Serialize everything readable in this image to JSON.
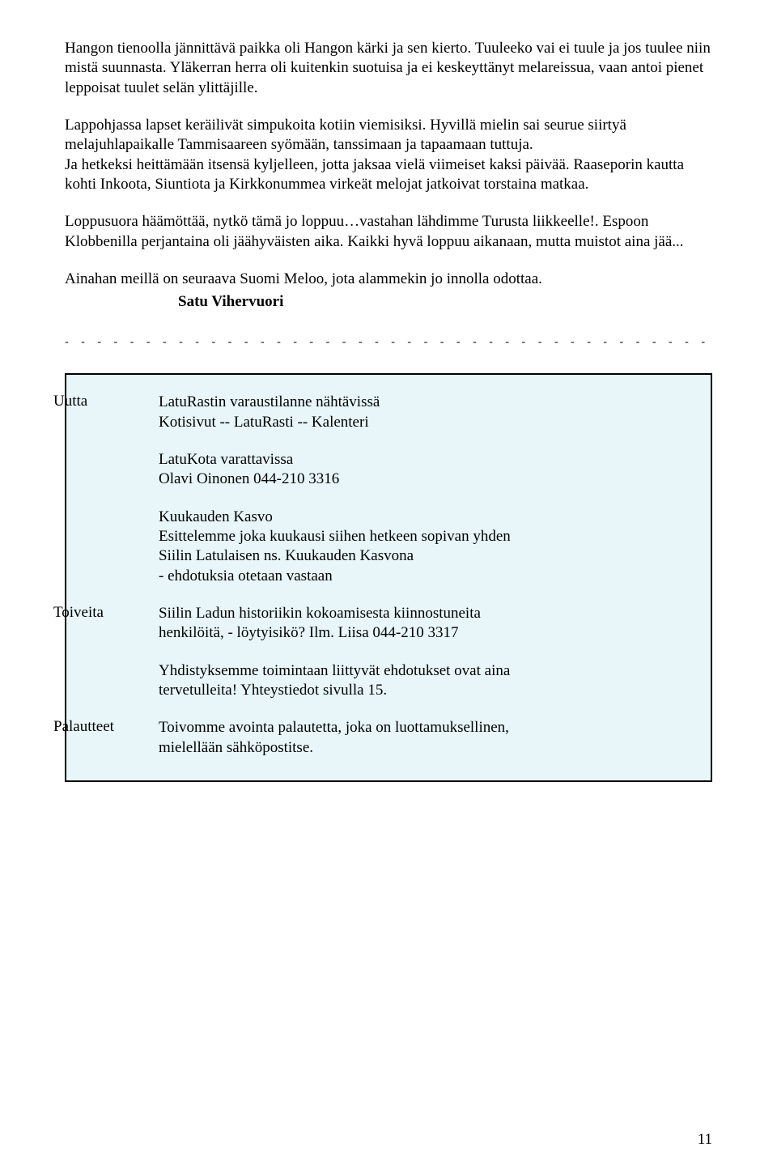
{
  "paragraphs": {
    "p1": "Hangon tienoolla jännittävä paikka oli Hangon kärki ja sen kierto. Tuuleeko vai ei tuule ja jos tuulee niin mistä suunnasta. Yläkerran herra oli kuitenkin suotuisa ja ei keskeyttänyt melareissua, vaan antoi pienet leppoisat tuulet selän ylittäjille.",
    "p2": "Lappohjassa lapset keräilivät simpukoita kotiin viemisiksi. Hyvillä mielin sai seurue siirtyä melajuhlapaikalle Tammisaareen syömään, tanssimaan ja tapaamaan tuttuja.",
    "p3": "Ja hetkeksi heittämään itsensä kyljelleen, jotta jaksaa vielä viimeiset kaksi päivää. Raaseporin kautta kohti Inkoota, Siuntiota ja Kirkkonummea virkeät melojat jatkoivat torstaina matkaa.",
    "p4": "Loppusuora häämöttää, nytkö tämä jo loppuu…vastahan lähdimme Turusta liikkeelle!. Espoon Klobbenilla perjantaina oli jäähyväisten aika. Kaikki hyvä loppuu aikanaan, mutta muistot aina jää...",
    "p5": "Ainahan meillä on seuraava Suomi Meloo, jota alammekin jo innolla odottaa."
  },
  "signature": "Satu Vihervuori",
  "infobox": {
    "uutta": {
      "label": "Uutta",
      "block1_line1": "LatuRastin varaustilanne nähtävissä",
      "block1_line2": "Kotisivut -- LatuRasti -- Kalenteri",
      "block2_line1": "LatuKota varattavissa",
      "block2_line2": "Olavi Oinonen 044-210 3316",
      "block3_line1": "Kuukauden Kasvo",
      "block3_line2": "Esittelemme joka kuukausi siihen hetkeen sopivan yhden",
      "block3_line3": "Siilin Latulaisen ns. Kuukauden Kasvona",
      "block3_line4": "-  ehdotuksia otetaan vastaan"
    },
    "toiveita": {
      "label": "Toiveita",
      "block1_line1": "Siilin Ladun historiikin kokoamisesta kiinnostuneita",
      "block1_line2": "henkilöitä, - löytyisikö? Ilm. Liisa 044-210 3317",
      "block2_line1": "Yhdistyksemme toimintaan liittyvät ehdotukset ovat aina",
      "block2_line2": "tervetulleita! Yhteystiedot sivulla 15."
    },
    "palautteet": {
      "label": "Palautteet",
      "block1_line1": "Toivomme avointa palautetta, joka on luottamuksellinen,",
      "block1_line2": "mielellään sähköpostitse."
    }
  },
  "pagenum": "11",
  "colors": {
    "box_bg": "#e8f6fa",
    "box_border": "#000000",
    "text": "#000000"
  }
}
